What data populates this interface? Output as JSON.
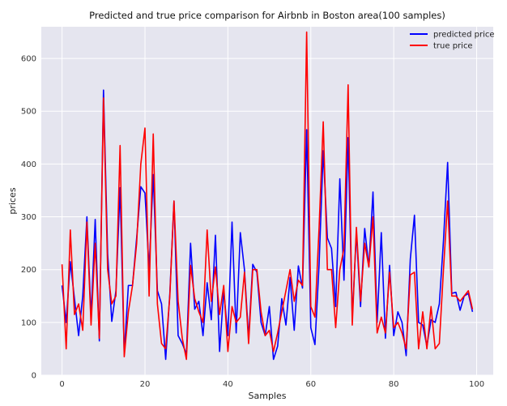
{
  "chart_data": {
    "type": "line",
    "title": "Predicted and true price comparison for Airbnb in Boston area(100 samples)",
    "xlabel": "Samples",
    "ylabel": "prices",
    "xlim": [
      -5,
      104
    ],
    "ylim": [
      0,
      660
    ],
    "xticks": [
      0,
      20,
      40,
      60,
      80,
      100
    ],
    "yticks": [
      0,
      100,
      200,
      300,
      400,
      500,
      600
    ],
    "grid": true,
    "legend_position": "top-right",
    "x": [
      0,
      1,
      2,
      3,
      4,
      5,
      6,
      7,
      8,
      9,
      10,
      11,
      12,
      13,
      14,
      15,
      16,
      17,
      18,
      19,
      20,
      21,
      22,
      23,
      24,
      25,
      26,
      27,
      28,
      29,
      30,
      31,
      32,
      33,
      34,
      35,
      36,
      37,
      38,
      39,
      40,
      41,
      42,
      43,
      44,
      45,
      46,
      47,
      48,
      49,
      50,
      51,
      52,
      53,
      54,
      55,
      56,
      57,
      58,
      59,
      60,
      61,
      62,
      63,
      64,
      65,
      66,
      67,
      68,
      69,
      70,
      71,
      72,
      73,
      74,
      75,
      76,
      77,
      78,
      79,
      80,
      81,
      82,
      83,
      84,
      85,
      86,
      87,
      88,
      89,
      90,
      91,
      92,
      93,
      94,
      95,
      96,
      97,
      98,
      99
    ],
    "series": [
      {
        "name": "predicted price",
        "color": "#0000ff",
        "values": [
          170,
          100,
          215,
          145,
          75,
          150,
          300,
          110,
          295,
          65,
          540,
          230,
          102,
          160,
          355,
          40,
          170,
          170,
          260,
          357,
          345,
          200,
          380,
          160,
          135,
          30,
          155,
          330,
          75,
          60,
          40,
          250,
          125,
          140,
          75,
          175,
          105,
          265,
          45,
          160,
          75,
          290,
          80,
          270,
          200,
          70,
          210,
          195,
          100,
          75,
          130,
          30,
          55,
          145,
          95,
          185,
          85,
          207,
          165,
          465,
          90,
          58,
          210,
          425,
          260,
          240,
          130,
          372,
          180,
          450,
          110,
          270,
          130,
          278,
          205,
          347,
          100,
          270,
          70,
          208,
          75,
          120,
          100,
          37,
          220,
          303,
          100,
          95,
          55,
          105,
          100,
          135,
          255,
          403,
          155,
          157,
          123,
          150,
          155,
          120
        ]
      },
      {
        "name": "true price",
        "color": "#ff0000",
        "values": [
          210,
          50,
          275,
          115,
          135,
          85,
          290,
          95,
          250,
          70,
          525,
          200,
          135,
          150,
          435,
          35,
          120,
          170,
          250,
          400,
          468,
          150,
          457,
          135,
          60,
          50,
          150,
          330,
          140,
          70,
          30,
          208,
          145,
          120,
          100,
          275,
          140,
          205,
          115,
          170,
          45,
          130,
          100,
          110,
          195,
          60,
          200,
          200,
          120,
          75,
          85,
          45,
          80,
          120,
          160,
          200,
          140,
          180,
          170,
          650,
          130,
          110,
          280,
          480,
          200,
          200,
          90,
          200,
          240,
          550,
          95,
          280,
          140,
          250,
          205,
          300,
          80,
          110,
          80,
          195,
          90,
          100,
          80,
          50,
          190,
          195,
          50,
          120,
          50,
          130,
          50,
          60,
          200,
          330,
          150,
          150,
          140,
          150,
          160,
          125
        ]
      }
    ]
  }
}
